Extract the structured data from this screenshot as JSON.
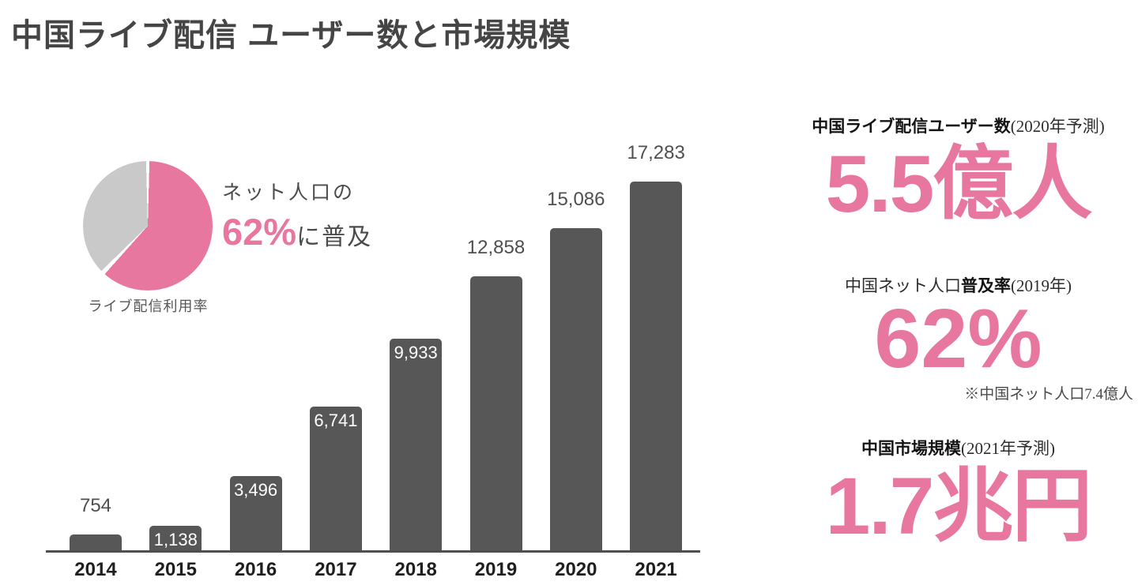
{
  "title": "中国ライブ配信 ユーザー数と市場規模",
  "accent_color": "#e8779f",
  "bar_color": "#575757",
  "pie_section": {
    "annotation_prefix": "ネット人口の",
    "annotation_value": "62%",
    "annotation_suffix": "に普及",
    "caption": "ライブ配信利用率",
    "filled_color": "#e8779f",
    "rest_color": "#c9c9c9"
  },
  "stats": {
    "users": {
      "label_bold": "中国ライブ配信ユーザー数",
      "label_note": "(2020年予測)",
      "value": "5.5億人"
    },
    "penetration": {
      "label_prefix": "中国ネット人口",
      "label_bold": "普及率",
      "label_note": "(2019年)",
      "value": "62%",
      "footnote": "※中国ネット人口7.4億人"
    },
    "market": {
      "label_bold": "中国市場規模",
      "label_note": "(2021年予測)",
      "value": "1.7兆円"
    }
  },
  "chart_data": [
    {
      "type": "bar",
      "title": "中国ライブ配信 ユーザー数と市場規模",
      "categories": [
        "2014",
        "2015",
        "2016",
        "2017",
        "2018",
        "2019",
        "2020",
        "2021"
      ],
      "values": [
        754,
        1138,
        3496,
        6741,
        9933,
        12858,
        15086,
        17283
      ],
      "data_labels": [
        "754",
        "1,138",
        "3,496",
        "6,741",
        "9,933",
        "12,858",
        "15,086",
        "17,283"
      ],
      "label_placement": [
        "above",
        "inside",
        "inside",
        "inside",
        "inside",
        "above",
        "above",
        "above"
      ],
      "xlabel": "",
      "ylabel": "",
      "ylim": [
        0,
        17283
      ],
      "grid": false,
      "legend": false,
      "bar_color": "#575757"
    },
    {
      "type": "pie",
      "segments": [
        {
          "label": "ライブ配信利用率",
          "value": 62,
          "color": "#e8779f"
        },
        {
          "label": "",
          "value": 38,
          "color": "#c9c9c9"
        }
      ],
      "annotation": "ネット人口の62%に普及",
      "start_angle_deg": 0,
      "direction": "clockwise",
      "legend": false
    }
  ]
}
